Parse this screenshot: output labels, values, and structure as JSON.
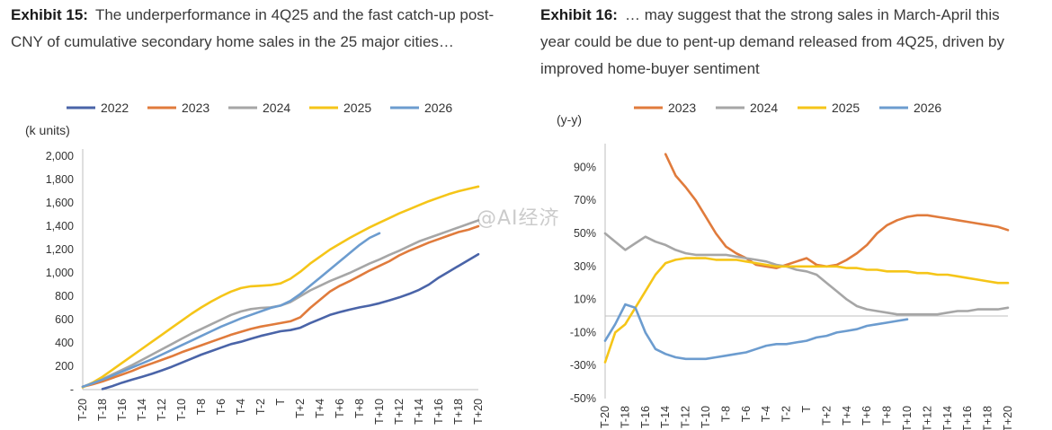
{
  "watermark": "@AI经济",
  "exhibits": [
    {
      "label": "Exhibit 15:",
      "caption": "The underperformance in 4Q25 and the fast catch-up post-CNY of cumulative secondary home sales in the 25 major cities…"
    },
    {
      "label": "Exhibit 16:",
      "caption": "… may suggest that the strong sales in March-April this year could be due to pent-up demand released from 4Q25, driven by improved home-buyer sentiment"
    }
  ],
  "chart_data": [
    {
      "type": "line",
      "unit_label": "(k units)",
      "ylim": [
        0,
        2000
      ],
      "yticks": [
        0,
        200,
        400,
        600,
        800,
        1000,
        1200,
        1400,
        1600,
        1800,
        2000
      ],
      "ytick_labels": [
        "-",
        "200",
        "400",
        "600",
        "800",
        "1,000",
        "1,200",
        "1,400",
        "1,600",
        "1,800",
        "2,000"
      ],
      "x": [
        "T-20",
        "T-19",
        "T-18",
        "T-17",
        "T-16",
        "T-15",
        "T-14",
        "T-13",
        "T-12",
        "T-11",
        "T-10",
        "T-9",
        "T-8",
        "T-7",
        "T-6",
        "T-5",
        "T-4",
        "T-3",
        "T-2",
        "T-1",
        "T",
        "T+1",
        "T+2",
        "T+3",
        "T+4",
        "T+5",
        "T+6",
        "T+7",
        "T+8",
        "T+9",
        "T+10",
        "T+11",
        "T+12",
        "T+13",
        "T+14",
        "T+15",
        "T+16",
        "T+17",
        "T+18",
        "T+19",
        "T+20"
      ],
      "xtick_labels": [
        "T-20",
        "T-18",
        "T-16",
        "T-14",
        "T-12",
        "T-10",
        "T-8",
        "T-6",
        "T-4",
        "T-2",
        "T",
        "T+2",
        "T+4",
        "T+6",
        "T+8",
        "T+10",
        "T+12",
        "T+14",
        "T+16",
        "T+18",
        "T+20"
      ],
      "grid": false,
      "legend_position": "top",
      "series": [
        {
          "name": "2022",
          "color": "#4a64a8",
          "values": [
            null,
            null,
            5,
            30,
            60,
            85,
            110,
            135,
            165,
            195,
            230,
            265,
            300,
            330,
            360,
            390,
            410,
            435,
            460,
            480,
            500,
            510,
            530,
            570,
            605,
            640,
            665,
            685,
            705,
            720,
            740,
            765,
            790,
            820,
            855,
            900,
            960,
            1010,
            1060,
            1110,
            1160
          ]
        },
        {
          "name": "2023",
          "color": "#e07b3c",
          "values": [
            25,
            45,
            70,
            100,
            130,
            160,
            195,
            225,
            255,
            285,
            320,
            350,
            380,
            410,
            440,
            470,
            495,
            520,
            540,
            555,
            570,
            585,
            620,
            700,
            770,
            840,
            890,
            930,
            975,
            1020,
            1060,
            1100,
            1150,
            1190,
            1225,
            1260,
            1290,
            1320,
            1350,
            1370,
            1400
          ]
        },
        {
          "name": "2024",
          "color": "#a6a6a6",
          "values": [
            25,
            55,
            90,
            130,
            170,
            210,
            255,
            300,
            345,
            390,
            435,
            480,
            520,
            560,
            600,
            640,
            670,
            690,
            700,
            705,
            720,
            750,
            800,
            850,
            890,
            930,
            965,
            1000,
            1040,
            1080,
            1115,
            1155,
            1190,
            1230,
            1270,
            1300,
            1330,
            1360,
            1390,
            1420,
            1450
          ]
        },
        {
          "name": "2025",
          "color": "#f5c518",
          "values": [
            20,
            60,
            110,
            170,
            230,
            290,
            350,
            410,
            470,
            530,
            590,
            650,
            705,
            755,
            800,
            840,
            870,
            885,
            890,
            895,
            910,
            950,
            1010,
            1080,
            1140,
            1200,
            1250,
            1300,
            1345,
            1390,
            1430,
            1470,
            1510,
            1545,
            1580,
            1615,
            1645,
            1675,
            1700,
            1720,
            1740
          ]
        },
        {
          "name": "2026",
          "color": "#6c9ccf",
          "values": [
            25,
            55,
            85,
            120,
            155,
            190,
            225,
            260,
            300,
            340,
            380,
            420,
            460,
            500,
            540,
            575,
            610,
            640,
            670,
            700,
            720,
            760,
            820,
            890,
            960,
            1030,
            1100,
            1170,
            1240,
            1300,
            1340,
            null,
            null,
            null,
            null,
            null,
            null,
            null,
            null,
            null,
            null
          ]
        }
      ]
    },
    {
      "type": "line",
      "unit_label": "(y-y)",
      "ylim": [
        -50,
        100
      ],
      "yticks": [
        -50,
        -30,
        -10,
        10,
        30,
        50,
        70,
        90
      ],
      "ytick_labels": [
        "-50%",
        "-30%",
        "-10%",
        "10%",
        "30%",
        "50%",
        "70%",
        "90%"
      ],
      "x": [
        "T-20",
        "T-19",
        "T-18",
        "T-17",
        "T-16",
        "T-15",
        "T-14",
        "T-13",
        "T-12",
        "T-11",
        "T-10",
        "T-9",
        "T-8",
        "T-7",
        "T-6",
        "T-5",
        "T-4",
        "T-3",
        "T-2",
        "T-1",
        "T",
        "T+1",
        "T+2",
        "T+3",
        "T+4",
        "T+5",
        "T+6",
        "T+7",
        "T+8",
        "T+9",
        "T+10",
        "T+11",
        "T+12",
        "T+13",
        "T+14",
        "T+15",
        "T+16",
        "T+17",
        "T+18",
        "T+19",
        "T+20"
      ],
      "xtick_labels": [
        "T-20",
        "T-18",
        "T-16",
        "T-14",
        "T-12",
        "T-10",
        "T-8",
        "T-6",
        "T-4",
        "T-2",
        "T",
        "T+2",
        "T+4",
        "T+6",
        "T+8",
        "T+10",
        "T+12",
        "T+14",
        "T+16",
        "T+18",
        "T+20"
      ],
      "grid": false,
      "legend_position": "top",
      "series": [
        {
          "name": "2023",
          "color": "#e07b3c",
          "values": [
            null,
            null,
            null,
            null,
            null,
            null,
            98,
            85,
            78,
            70,
            60,
            50,
            42,
            38,
            35,
            31,
            30,
            29,
            31,
            33,
            35,
            31,
            30,
            31,
            34,
            38,
            43,
            50,
            55,
            58,
            60,
            61,
            61,
            60,
            59,
            58,
            57,
            56,
            55,
            54,
            52
          ]
        },
        {
          "name": "2024",
          "color": "#a6a6a6",
          "values": [
            50,
            45,
            40,
            44,
            48,
            45,
            43,
            40,
            38,
            37,
            37,
            37,
            37,
            36,
            35,
            34,
            33,
            31,
            30,
            28,
            27,
            25,
            20,
            15,
            10,
            6,
            4,
            3,
            2,
            1,
            1,
            1,
            1,
            1,
            2,
            3,
            3,
            4,
            4,
            4,
            5
          ]
        },
        {
          "name": "2025",
          "color": "#f5c518",
          "values": [
            -28,
            -10,
            -5,
            5,
            15,
            25,
            32,
            34,
            35,
            35,
            35,
            34,
            34,
            34,
            33,
            32,
            31,
            30,
            30,
            30,
            30,
            30,
            30,
            30,
            29,
            29,
            28,
            28,
            27,
            27,
            27,
            26,
            26,
            25,
            25,
            24,
            23,
            22,
            21,
            20,
            20
          ]
        },
        {
          "name": "2026",
          "color": "#6c9ccf",
          "values": [
            -15,
            -5,
            7,
            5,
            -10,
            -20,
            -23,
            -25,
            -26,
            -26,
            -26,
            -25,
            -24,
            -23,
            -22,
            -20,
            -18,
            -17,
            -17,
            -16,
            -15,
            -13,
            -12,
            -10,
            -9,
            -8,
            -6,
            -5,
            -4,
            -3,
            -2,
            null,
            null,
            null,
            null,
            null,
            null,
            null,
            null,
            null,
            null
          ]
        }
      ]
    }
  ]
}
